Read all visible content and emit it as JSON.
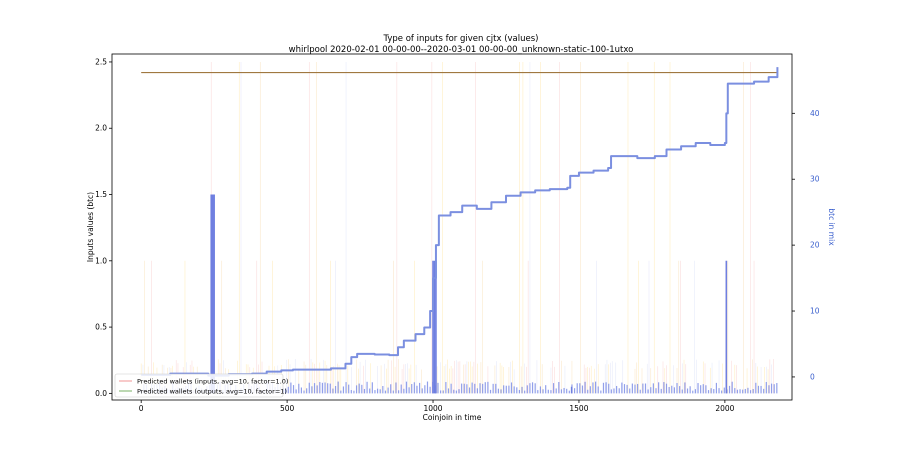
{
  "chart_data": {
    "type": "bar",
    "title": "Type of inputs for given cjtx (values)",
    "subtitle": "whirlpool 2020-02-01 00-00-00--2020-03-01 00-00-00_unknown-static-100-1utxo",
    "xlabel": "Coinjoin in time",
    "ylabel": "Inputs values (btc)",
    "ylabel_right": "btc in mix",
    "xlim": [
      -100,
      2230
    ],
    "ylim": [
      -0.05,
      2.56
    ],
    "ylim_right": [
      -3.5,
      49
    ],
    "x_ticks": [
      0,
      500,
      1000,
      1500,
      2000
    ],
    "y_ticks": [
      0.0,
      0.5,
      1.0,
      1.5,
      2.0,
      2.5
    ],
    "y_tick_labels": [
      "0.0",
      "0.5",
      "1.0",
      "1.5",
      "2.0",
      "2.5"
    ],
    "y_ticks_right": [
      0,
      10,
      20,
      30,
      40
    ],
    "legend": {
      "placement": "lower-left",
      "entries": [
        {
          "label": "Predicted wallets (inputs, avg=10, factor=1.0)",
          "color": "#f4a6a6"
        },
        {
          "label": "Predicted wallets (outputs, avg=10, factor=1)",
          "color": "#8fbf7f"
        }
      ]
    },
    "reference_line": {
      "value": 2.42,
      "x_range": [
        0,
        2180
      ],
      "color": "#a07840"
    },
    "btc_in_mix": {
      "color": "#7b8fe0",
      "points": [
        [
          0,
          0.3
        ],
        [
          100,
          0.5
        ],
        [
          200,
          0.5
        ],
        [
          230,
          0.2
        ],
        [
          300,
          0.4
        ],
        [
          380,
          0.5
        ],
        [
          430,
          0.8
        ],
        [
          480,
          1.0
        ],
        [
          520,
          1.1
        ],
        [
          600,
          1.1
        ],
        [
          650,
          1.3
        ],
        [
          700,
          2.0
        ],
        [
          720,
          3.0
        ],
        [
          740,
          3.5
        ],
        [
          800,
          3.4
        ],
        [
          850,
          3.3
        ],
        [
          880,
          4.5
        ],
        [
          900,
          5.5
        ],
        [
          940,
          6.5
        ],
        [
          970,
          7.5
        ],
        [
          990,
          10.0
        ],
        [
          1000,
          15.0
        ],
        [
          1010,
          20.0
        ],
        [
          1020,
          24.5
        ],
        [
          1060,
          25.0
        ],
        [
          1100,
          26.0
        ],
        [
          1150,
          25.5
        ],
        [
          1200,
          26.5
        ],
        [
          1250,
          27.5
        ],
        [
          1300,
          28.0
        ],
        [
          1350,
          28.3
        ],
        [
          1400,
          28.5
        ],
        [
          1460,
          28.7
        ],
        [
          1470,
          30.5
        ],
        [
          1500,
          31.0
        ],
        [
          1550,
          31.3
        ],
        [
          1600,
          31.7
        ],
        [
          1610,
          33.5
        ],
        [
          1700,
          33.2
        ],
        [
          1760,
          33.5
        ],
        [
          1800,
          34.5
        ],
        [
          1850,
          35.0
        ],
        [
          1900,
          35.5
        ],
        [
          1950,
          35.2
        ],
        [
          2000,
          35.5
        ],
        [
          2005,
          40.0
        ],
        [
          2010,
          44.5
        ],
        [
          2100,
          44.8
        ],
        [
          2150,
          45.5
        ],
        [
          2180,
          47.0
        ]
      ]
    },
    "input_spikes": {
      "color": "#6f7fe0",
      "x": [
        240,
        245,
        250,
        1000,
        1005,
        1010,
        1475,
        2005
      ],
      "values": [
        1.5,
        1.5,
        1.5,
        1.0,
        1.0,
        1.0,
        0.05,
        1.0
      ]
    }
  }
}
